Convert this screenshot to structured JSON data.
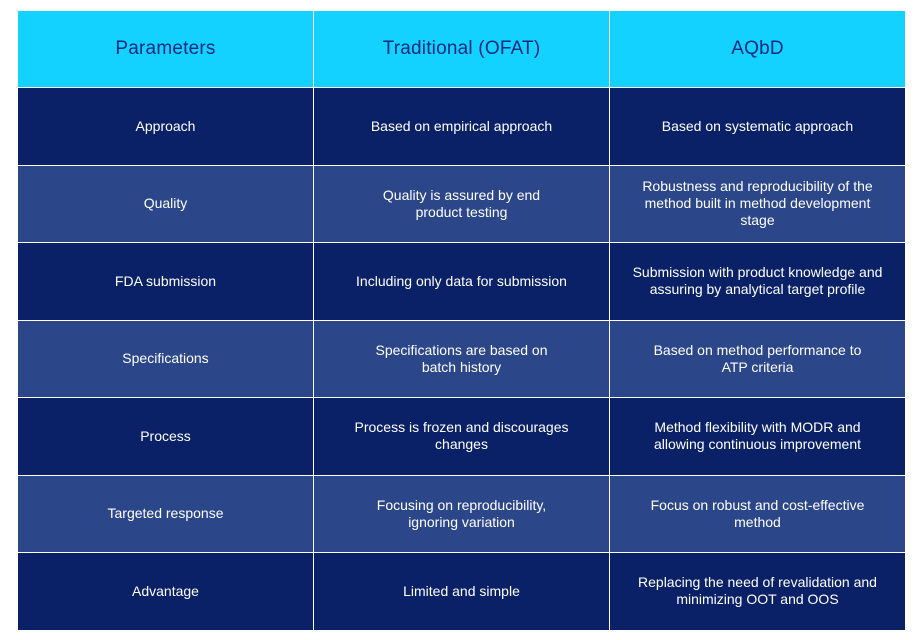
{
  "colors": {
    "header_bg": "#14d2ff",
    "header_text": "#0b2a7e",
    "row_dark": "#0a2167",
    "row_light": "#2b4689",
    "cell_text": "#ffffff"
  },
  "headers": [
    "Parameters",
    "Traditional (OFAT)",
    "AQbD"
  ],
  "rows": [
    {
      "parameter": "Approach",
      "traditional": "Based on empirical approach",
      "aqbd": "Based on systematic approach"
    },
    {
      "parameter": "Quality",
      "traditional": "Quality is assured by end product testing",
      "aqbd": "Robustness and reproducibility of the method built in method development stage"
    },
    {
      "parameter": "FDA submission",
      "traditional": "Including only data for submission",
      "aqbd": "Submission with product knowledge and assuring by analytical target profile"
    },
    {
      "parameter": "Specifications",
      "traditional": "Specifications are based on batch history",
      "aqbd": "Based on method performance to ATP criteria"
    },
    {
      "parameter": "Process",
      "traditional": "Process is frozen and discourages changes",
      "aqbd": "Method flexibility with MODR and allowing continuous improvement"
    },
    {
      "parameter": "Targeted response",
      "traditional": "Focusing on reproducibility, ignoring variation",
      "aqbd": "Focus on robust and cost-effective method"
    },
    {
      "parameter": "Advantage",
      "traditional": "Limited and simple",
      "aqbd": "Replacing the need of revalidation and minimizing OOT and OOS"
    }
  ]
}
